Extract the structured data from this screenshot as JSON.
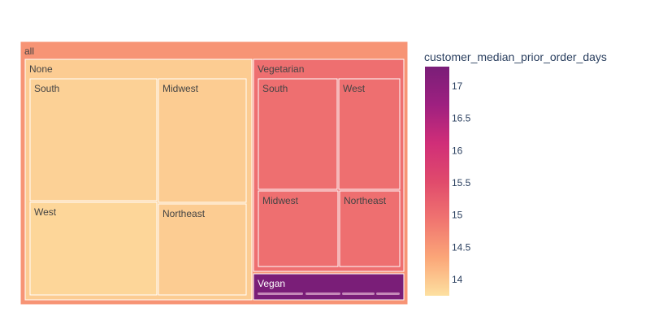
{
  "chart_data": {
    "type": "treemap",
    "root_label": "all",
    "root_value": 14.55,
    "groups": [
      {
        "name": "None",
        "value": 13.95,
        "children": [
          {
            "name": "South",
            "value": 13.9
          },
          {
            "name": "Midwest",
            "value": 13.95
          },
          {
            "name": "West",
            "value": 13.85
          },
          {
            "name": "Northeast",
            "value": 13.95
          }
        ]
      },
      {
        "name": "Vegetarian",
        "value": 15.0,
        "children": [
          {
            "name": "South",
            "value": 15.0
          },
          {
            "name": "West",
            "value": 15.0
          },
          {
            "name": "Midwest",
            "value": 15.0
          },
          {
            "name": "Northeast",
            "value": 15.0
          }
        ]
      },
      {
        "name": "Vegan",
        "value": 17.3,
        "children": []
      }
    ],
    "colorbar": {
      "title": "customer_median_prior_order_days",
      "range": [
        13.75,
        17.3
      ],
      "ticks": [
        14,
        14.5,
        15,
        15.5,
        16,
        16.5,
        17
      ],
      "colors": [
        "#fde0a0",
        "#fba678",
        "#f07470",
        "#e04a6c",
        "#d02e78",
        "#9e2080",
        "#7a1e78"
      ]
    }
  }
}
